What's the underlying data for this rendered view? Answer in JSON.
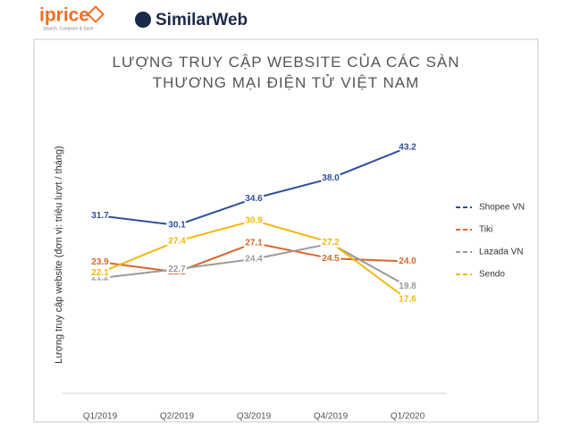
{
  "logos": {
    "iprice": "iprice",
    "iprice_tagline": "Search, Compare & Save",
    "similarweb": "SimilarWeb"
  },
  "chart_data": {
    "type": "line",
    "title": "LƯỢNG TRUY CẬP WEBSITE CỦA CÁC SÀN THƯƠNG MẠI ĐIỆN TỬ VIỆT NAM",
    "y_label": "Lượng truy cập website (đơn vị: triệu lượt / tháng)",
    "categories": [
      "Q1/2019",
      "Q2/2019",
      "Q3/2019",
      "Q4/2019",
      "Q1/2020"
    ],
    "legend": "right",
    "series": [
      {
        "name": "Shopee VN",
        "color": "#2f4f9a",
        "values": [
          31.7,
          30.1,
          34.6,
          38.0,
          43.2
        ],
        "value_labels": [
          "31.7",
          "30.1",
          "34.6",
          "38.0",
          "43.2"
        ]
      },
      {
        "name": "Tiki",
        "color": "#d8652b",
        "values": [
          23.9,
          22.2,
          27.1,
          24.5,
          24.0
        ],
        "value_labels": [
          "23.9",
          "22.2",
          "27.1",
          "24.5",
          "24.0"
        ]
      },
      {
        "name": "Lazada VN",
        "color": "#9a9a9a",
        "values": [
          21.2,
          22.7,
          24.4,
          27.0,
          19.8
        ],
        "value_labels": [
          "21.2",
          "22.7",
          "24.4",
          "27.0",
          "19.8"
        ]
      },
      {
        "name": "Sendo",
        "color": "#f0b80c",
        "values": [
          22.1,
          27.4,
          30.9,
          27.2,
          17.6
        ],
        "value_labels": [
          "22.1",
          "27.4",
          "30.9",
          "27.2",
          "17.6"
        ]
      }
    ]
  }
}
